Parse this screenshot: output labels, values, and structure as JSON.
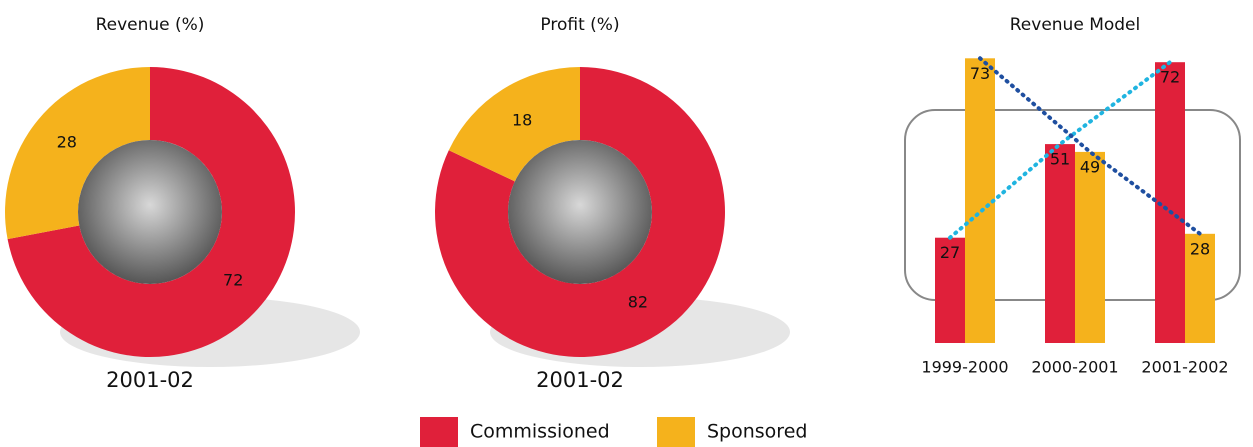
{
  "chart_data": [
    {
      "type": "donut",
      "title": "Revenue (%)",
      "subtitle": "2001-02",
      "values": [
        72,
        28
      ],
      "colors": [
        "#e0203a",
        "#f5b21c"
      ]
    },
    {
      "type": "donut",
      "title": "Profit (%)",
      "subtitle": "2001-02",
      "values": [
        82,
        18
      ],
      "colors": [
        "#e0203a",
        "#f5b21c"
      ]
    },
    {
      "type": "bar",
      "title": "Revenue Model",
      "categories": [
        "1999-2000",
        "2000-2001",
        "2001-2002"
      ],
      "series": [
        {
          "name": "Commissioned",
          "color": "#e0203a",
          "line_color": "#20b4e0",
          "values": [
            27,
            51,
            72
          ]
        },
        {
          "name": "Sponsored",
          "color": "#f5b21c",
          "line_color": "#1f4fa0",
          "values": [
            73,
            49,
            28
          ]
        }
      ]
    }
  ]
}
